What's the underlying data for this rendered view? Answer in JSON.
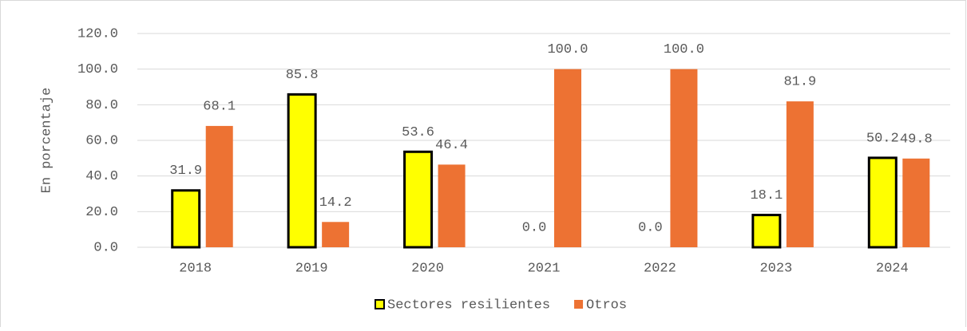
{
  "chart_data": {
    "type": "bar",
    "y_label": "En porcentaje",
    "categories": [
      "2018",
      "2019",
      "2020",
      "2021",
      "2022",
      "2023",
      "2024"
    ],
    "series": [
      {
        "name": "Sectores resilientes",
        "color": "#ffff00",
        "values": [
          31.9,
          85.8,
          53.6,
          0.0,
          0.0,
          18.1,
          50.2
        ],
        "value_labels": [
          "31.9",
          "85.8",
          "53.6",
          "0.0",
          "0.0",
          "18.1",
          "50.2"
        ]
      },
      {
        "name": "Otros",
        "color": "#ed7233",
        "values": [
          68.1,
          14.2,
          46.4,
          100.0,
          100.0,
          81.9,
          49.8
        ],
        "value_labels": [
          "68.1",
          "14.2",
          "46.4",
          "100.0",
          "100.0",
          "81.9",
          "49.8"
        ]
      }
    ],
    "ylim": [
      0,
      120
    ],
    "yticks": [
      {
        "value": 0,
        "label": "0.0"
      },
      {
        "value": 20,
        "label": "20.0"
      },
      {
        "value": 40,
        "label": "40.0"
      },
      {
        "value": 60,
        "label": "60.0"
      },
      {
        "value": 80,
        "label": "80.0"
      },
      {
        "value": 100,
        "label": "100.0"
      },
      {
        "value": 120,
        "label": "120.0"
      }
    ],
    "grid": true,
    "legend": "bottom"
  }
}
